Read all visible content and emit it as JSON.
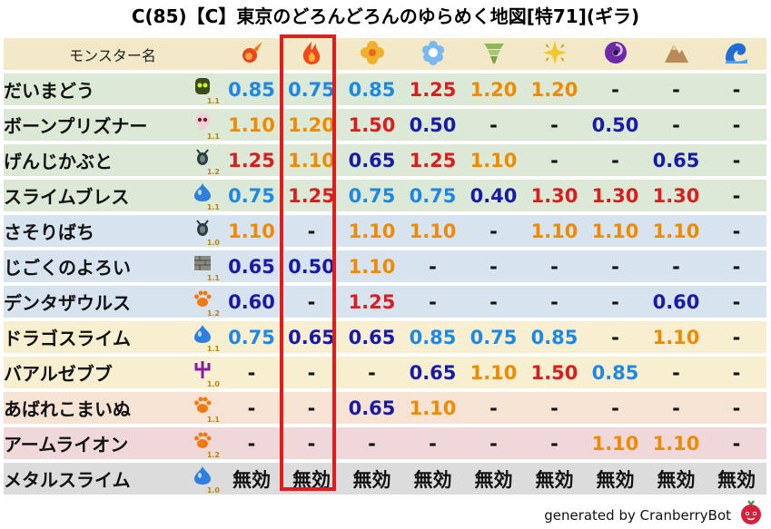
{
  "title": "C(85)【C】東京のどろんどろんのゆらめく地図[特71](ギラ)",
  "header": {
    "monster_label": "モンスター名",
    "elements": [
      {
        "icon": "fire-ball-icon"
      },
      {
        "icon": "flame-icon"
      },
      {
        "icon": "clover-icon"
      },
      {
        "icon": "snowflake-icon"
      },
      {
        "icon": "tornado-icon"
      },
      {
        "icon": "sparkle-icon"
      },
      {
        "icon": "dark-swirl-icon"
      },
      {
        "icon": "mountain-icon"
      },
      {
        "icon": "wave-icon"
      }
    ]
  },
  "colors": {
    "weak": "#d81e1e",
    "slight_weak": "#f08a00",
    "resist": "#1e88e5",
    "strong_resist": "#1a1aa8",
    "none": "#111111",
    "highlight": "#e21b1b"
  },
  "rows": [
    {
      "name": "だいまどう",
      "icon": "zombie-head-icon",
      "level": "1.1",
      "tone": "green",
      "cells": [
        {
          "v": "0.85",
          "c": "resist"
        },
        {
          "v": "0.75",
          "c": "resist"
        },
        {
          "v": "0.85",
          "c": "resist"
        },
        {
          "v": "1.25",
          "c": "weak"
        },
        {
          "v": "1.20",
          "c": "slight_weak"
        },
        {
          "v": "1.20",
          "c": "slight_weak"
        },
        {
          "v": "-",
          "c": "none"
        },
        {
          "v": "-",
          "c": "none"
        },
        {
          "v": "-",
          "c": "none"
        }
      ]
    },
    {
      "name": "ボーンプリズナー",
      "icon": "skull-icon",
      "level": "1.1",
      "tone": "green",
      "cells": [
        {
          "v": "1.10",
          "c": "slight_weak"
        },
        {
          "v": "1.20",
          "c": "slight_weak"
        },
        {
          "v": "1.50",
          "c": "weak"
        },
        {
          "v": "0.50",
          "c": "strong_resist"
        },
        {
          "v": "-",
          "c": "none"
        },
        {
          "v": "-",
          "c": "none"
        },
        {
          "v": "0.50",
          "c": "strong_resist"
        },
        {
          "v": "-",
          "c": "none"
        },
        {
          "v": "-",
          "c": "none"
        }
      ]
    },
    {
      "name": "げんじかぶと",
      "icon": "bug-icon",
      "level": "1.2",
      "tone": "green",
      "cells": [
        {
          "v": "1.25",
          "c": "weak"
        },
        {
          "v": "1.10",
          "c": "slight_weak"
        },
        {
          "v": "0.65",
          "c": "strong_resist"
        },
        {
          "v": "1.25",
          "c": "weak"
        },
        {
          "v": "1.10",
          "c": "slight_weak"
        },
        {
          "v": "-",
          "c": "none"
        },
        {
          "v": "-",
          "c": "none"
        },
        {
          "v": "0.65",
          "c": "strong_resist"
        },
        {
          "v": "-",
          "c": "none"
        }
      ]
    },
    {
      "name": "スライムブレス",
      "icon": "slime-icon",
      "level": "1.1",
      "tone": "green",
      "cells": [
        {
          "v": "0.75",
          "c": "resist"
        },
        {
          "v": "1.25",
          "c": "weak"
        },
        {
          "v": "0.75",
          "c": "resist"
        },
        {
          "v": "0.75",
          "c": "resist"
        },
        {
          "v": "0.40",
          "c": "strong_resist"
        },
        {
          "v": "1.30",
          "c": "weak"
        },
        {
          "v": "1.30",
          "c": "weak"
        },
        {
          "v": "1.30",
          "c": "weak"
        },
        {
          "v": "-",
          "c": "none"
        }
      ]
    },
    {
      "name": "さそりばち",
      "icon": "bug-icon",
      "level": "1.0",
      "tone": "blue",
      "cells": [
        {
          "v": "1.10",
          "c": "slight_weak"
        },
        {
          "v": "-",
          "c": "none"
        },
        {
          "v": "1.10",
          "c": "slight_weak"
        },
        {
          "v": "1.10",
          "c": "slight_weak"
        },
        {
          "v": "-",
          "c": "none"
        },
        {
          "v": "1.10",
          "c": "slight_weak"
        },
        {
          "v": "1.10",
          "c": "slight_weak"
        },
        {
          "v": "1.10",
          "c": "slight_weak"
        },
        {
          "v": "-",
          "c": "none"
        }
      ]
    },
    {
      "name": "じごくのよろい",
      "icon": "brick-icon",
      "level": "1.1",
      "tone": "blue",
      "cells": [
        {
          "v": "0.65",
          "c": "strong_resist"
        },
        {
          "v": "0.50",
          "c": "strong_resist"
        },
        {
          "v": "1.10",
          "c": "slight_weak"
        },
        {
          "v": "-",
          "c": "none"
        },
        {
          "v": "-",
          "c": "none"
        },
        {
          "v": "-",
          "c": "none"
        },
        {
          "v": "-",
          "c": "none"
        },
        {
          "v": "-",
          "c": "none"
        },
        {
          "v": "-",
          "c": "none"
        }
      ]
    },
    {
      "name": "デンタザウルス",
      "icon": "paw-icon",
      "level": "1.2",
      "tone": "blue",
      "cells": [
        {
          "v": "0.60",
          "c": "strong_resist"
        },
        {
          "v": "-",
          "c": "none"
        },
        {
          "v": "1.25",
          "c": "weak"
        },
        {
          "v": "-",
          "c": "none"
        },
        {
          "v": "-",
          "c": "none"
        },
        {
          "v": "-",
          "c": "none"
        },
        {
          "v": "-",
          "c": "none"
        },
        {
          "v": "0.60",
          "c": "strong_resist"
        },
        {
          "v": "-",
          "c": "none"
        }
      ]
    },
    {
      "name": "ドラゴスライム",
      "icon": "slime-icon",
      "level": "1.1",
      "tone": "yellow",
      "cells": [
        {
          "v": "0.75",
          "c": "resist"
        },
        {
          "v": "0.65",
          "c": "strong_resist"
        },
        {
          "v": "0.65",
          "c": "strong_resist"
        },
        {
          "v": "0.85",
          "c": "resist"
        },
        {
          "v": "0.75",
          "c": "resist"
        },
        {
          "v": "0.85",
          "c": "resist"
        },
        {
          "v": "-",
          "c": "none"
        },
        {
          "v": "1.10",
          "c": "slight_weak"
        },
        {
          "v": "-",
          "c": "none"
        }
      ]
    },
    {
      "name": "バアルゼブブ",
      "icon": "trident-icon",
      "level": "1.0",
      "tone": "yellow",
      "cells": [
        {
          "v": "-",
          "c": "none"
        },
        {
          "v": "-",
          "c": "none"
        },
        {
          "v": "-",
          "c": "none"
        },
        {
          "v": "0.65",
          "c": "strong_resist"
        },
        {
          "v": "1.10",
          "c": "slight_weak"
        },
        {
          "v": "1.50",
          "c": "weak"
        },
        {
          "v": "0.85",
          "c": "resist"
        },
        {
          "v": "-",
          "c": "none"
        },
        {
          "v": "-",
          "c": "none"
        }
      ]
    },
    {
      "name": "あばれこまいぬ",
      "icon": "paw-icon",
      "level": "1.1",
      "tone": "orange",
      "cells": [
        {
          "v": "-",
          "c": "none"
        },
        {
          "v": "-",
          "c": "none"
        },
        {
          "v": "0.65",
          "c": "strong_resist"
        },
        {
          "v": "1.10",
          "c": "slight_weak"
        },
        {
          "v": "-",
          "c": "none"
        },
        {
          "v": "-",
          "c": "none"
        },
        {
          "v": "-",
          "c": "none"
        },
        {
          "v": "-",
          "c": "none"
        },
        {
          "v": "-",
          "c": "none"
        }
      ]
    },
    {
      "name": "アームライオン",
      "icon": "paw-icon",
      "level": "1.2",
      "tone": "pink",
      "cells": [
        {
          "v": "-",
          "c": "none"
        },
        {
          "v": "-",
          "c": "none"
        },
        {
          "v": "-",
          "c": "none"
        },
        {
          "v": "-",
          "c": "none"
        },
        {
          "v": "-",
          "c": "none"
        },
        {
          "v": "-",
          "c": "none"
        },
        {
          "v": "1.10",
          "c": "slight_weak"
        },
        {
          "v": "1.10",
          "c": "slight_weak"
        },
        {
          "v": "-",
          "c": "none"
        }
      ]
    },
    {
      "name": "メタルスライム",
      "icon": "slime-icon",
      "level": "1.0",
      "tone": "gray",
      "cells": [
        {
          "v": "無効",
          "c": "none"
        },
        {
          "v": "無効",
          "c": "none"
        },
        {
          "v": "無効",
          "c": "none"
        },
        {
          "v": "無効",
          "c": "none"
        },
        {
          "v": "無効",
          "c": "none"
        },
        {
          "v": "無効",
          "c": "none"
        },
        {
          "v": "無効",
          "c": "none"
        },
        {
          "v": "無効",
          "c": "none"
        },
        {
          "v": "無効",
          "c": "none"
        }
      ]
    }
  ],
  "footer": {
    "text": "generated by CranberryBot",
    "icon": "cranberry-icon"
  }
}
